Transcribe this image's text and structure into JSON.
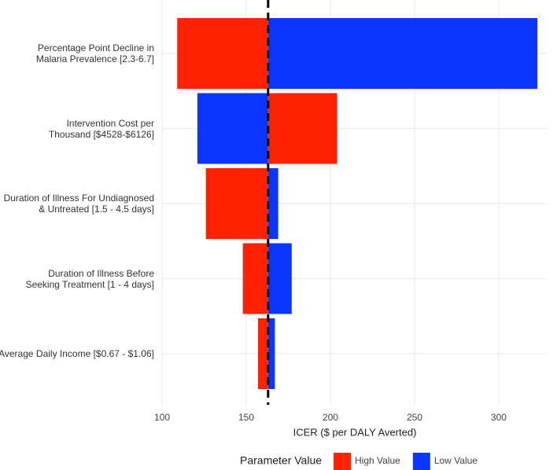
{
  "chart_data": {
    "type": "tornado",
    "categories": [
      "Percentage Point Decline in\nMalaria Prevalence [2.3-6.7]",
      "Intervention Cost per\nThousand [$4528-$6126]",
      "Duration of Illness For Undiagnosed\n& Untreated [1.5 - 4.5 days]",
      "Duration of Illness Before\nSeeking Treatment [1 - 4 days]",
      "Average Daily Income [$0.67 - $1.06]"
    ],
    "series": [
      {
        "name": "High Value",
        "color": "#ff2200",
        "values": [
          109,
          204,
          126,
          148,
          157
        ]
      },
      {
        "name": "Low Value",
        "color": "#0a36ff",
        "values": [
          323,
          121,
          169,
          177,
          167
        ]
      }
    ],
    "baseline": 163,
    "xlim": [
      100,
      329
    ],
    "xticks": [
      100,
      150,
      200,
      250,
      300
    ],
    "xlabel": "ICER ($ per DALY Averted)",
    "legend_title": "Parameter Value",
    "grid": true
  }
}
